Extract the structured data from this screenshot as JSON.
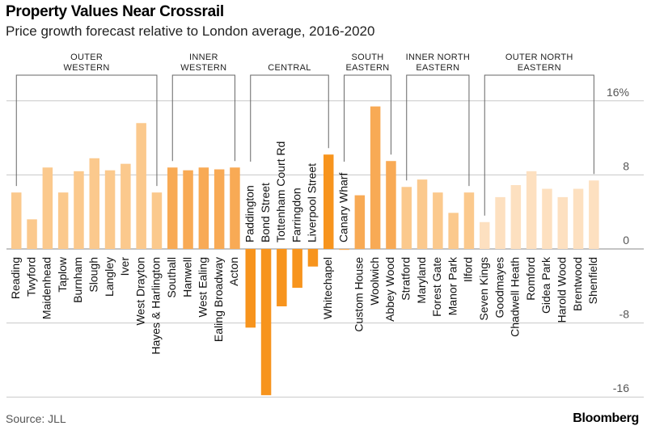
{
  "title": "Property Values Near Crossrail",
  "subtitle": "Price growth forecast relative to London average, 2016-2020",
  "source": "Source: JLL",
  "brand": "Bloomberg",
  "colors": {
    "outer_western": "#fbc98d",
    "inner_western": "#f8aa55",
    "central": "#f7941d",
    "south_eastern": "#f8aa55",
    "inner_north_eastern": "#fbc98d",
    "outer_north_eastern": "#fde0c0",
    "grid": "#c8c8c8"
  },
  "chart_data": {
    "type": "bar",
    "title": "Property Values Near Crossrail",
    "subtitle": "Price growth forecast relative to London average, 2016-2020",
    "ylim": [
      -16,
      16
    ],
    "y_ticks": [
      "16%",
      "8",
      "0",
      "-8",
      "-16"
    ],
    "y_tick_values": [
      16,
      8,
      0,
      -8,
      -16
    ],
    "grid": true,
    "categories": [
      "Reading",
      "Twyford",
      "Maidenhead",
      "Taplow",
      "Burnham",
      "Slough",
      "Langley",
      "Iver",
      "West Drayton",
      "Hayes & Harlington",
      "Southall",
      "Hanwell",
      "West Ealing",
      "Ealing Broadway",
      "Acton",
      "Paddington",
      "Bond Street",
      "Tottenham Court Rd",
      "Farringdon",
      "Liverpool Street",
      "Whitechapel",
      "Canary Wharf",
      "Custom House",
      "Woolwich",
      "Abbey Wood",
      "Stratford",
      "Maryland",
      "Forest Gate",
      "Manor Park",
      "Ilford",
      "Seven Kings",
      "Goodmayes",
      "Chadwell Heath",
      "Romford",
      "Gidea Park",
      "Harold Wood",
      "Brentwood",
      "Shenfield"
    ],
    "values": [
      6.1,
      3.2,
      8.8,
      6.1,
      8.4,
      9.8,
      8.5,
      9.2,
      13.6,
      6.1,
      8.8,
      8.5,
      8.8,
      8.6,
      8.8,
      -8.5,
      -15.8,
      -6.2,
      -4.2,
      -1.9,
      10.2,
      -0.1,
      5.8,
      15.4,
      9.5,
      6.7,
      7.5,
      6.1,
      3.9,
      6.1,
      2.9,
      5.6,
      6.9,
      8.4,
      6.5,
      5.6,
      6.5,
      7.4
    ],
    "groups": [
      {
        "name": "OUTER WESTERN",
        "lines": [
          "OUTER",
          "WESTERN"
        ],
        "start": 0,
        "end": 9,
        "color_key": "outer_western"
      },
      {
        "name": "INNER WESTERN",
        "lines": [
          "INNER",
          "WESTERN"
        ],
        "start": 10,
        "end": 14,
        "color_key": "inner_western"
      },
      {
        "name": "CENTRAL",
        "lines": [
          "CENTRAL"
        ],
        "start": 15,
        "end": 20,
        "color_key": "central"
      },
      {
        "name": "SOUTH EASTERN",
        "lines": [
          "SOUTH",
          "EASTERN"
        ],
        "start": 21,
        "end": 24,
        "color_key": "south_eastern"
      },
      {
        "name": "INNER NORTH EASTERN",
        "lines": [
          "INNER NORTH",
          "EASTERN"
        ],
        "start": 25,
        "end": 29,
        "color_key": "inner_north_eastern"
      },
      {
        "name": "OUTER NORTH EASTERN",
        "lines": [
          "OUTER NORTH",
          "EASTERN"
        ],
        "start": 30,
        "end": 37,
        "color_key": "outer_north_eastern"
      }
    ]
  }
}
